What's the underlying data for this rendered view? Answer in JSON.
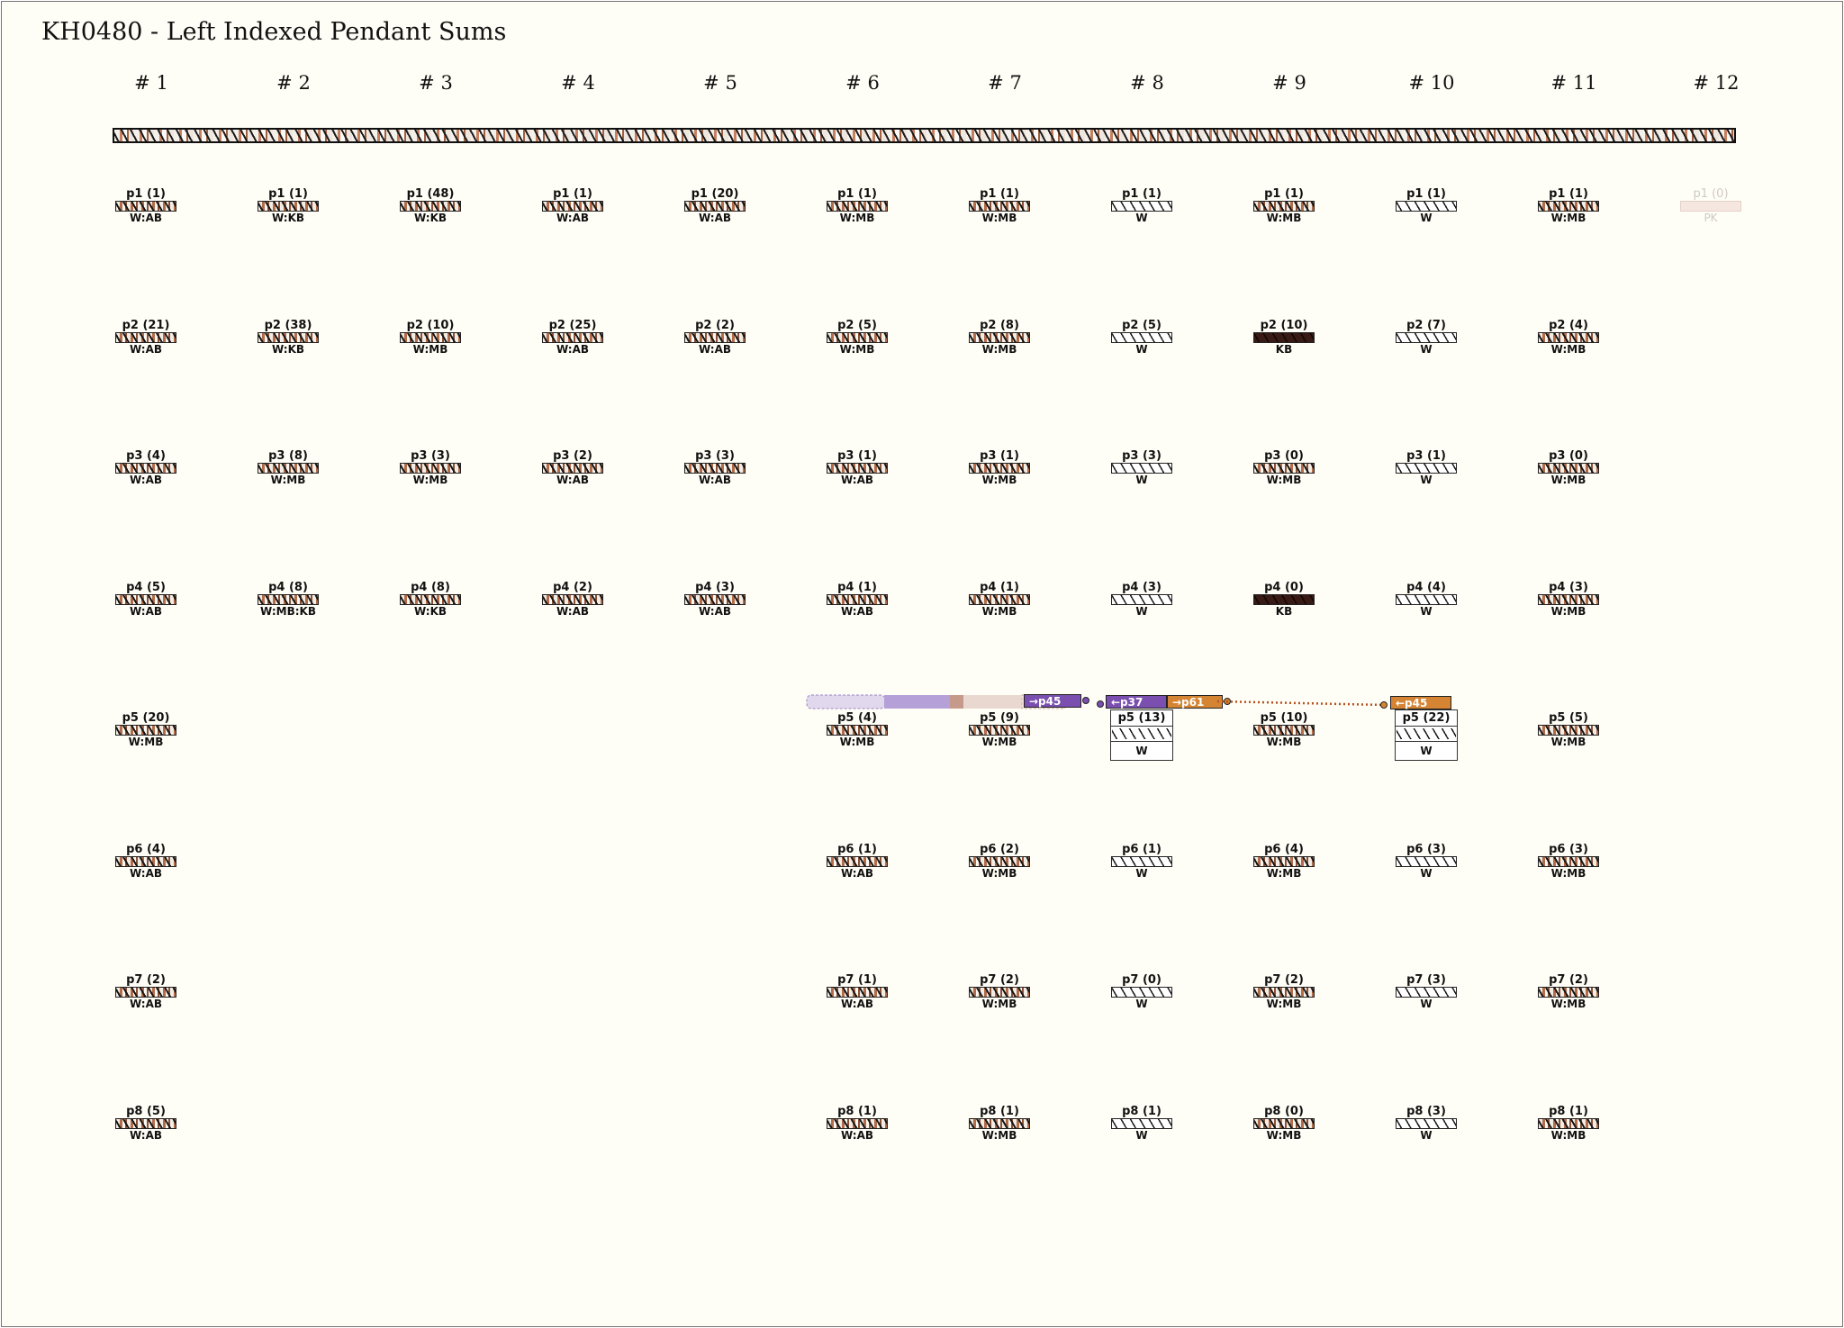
{
  "title": "KH0480 - Left Indexed Pendant Sums",
  "cord_group_headers": [
    "# 1",
    "# 2",
    "# 3",
    "# 4",
    "# 5",
    "# 6",
    "# 7",
    "# 8",
    "# 9",
    "# 10",
    "# 11",
    "# 12"
  ],
  "columns": [
    {
      "pendants": [
        {
          "label": "p1 (1)",
          "color": "W:AB",
          "cord": "mixed"
        },
        {
          "label": "p2 (21)",
          "color": "W:AB",
          "cord": "mixed"
        },
        {
          "label": "p3 (4)",
          "color": "W:AB",
          "cord": "mixed"
        },
        {
          "label": "p4 (5)",
          "color": "W:AB",
          "cord": "mixed"
        },
        {
          "label": "p5 (20)",
          "color": "W:MB",
          "cord": "mixed"
        },
        {
          "label": "p6 (4)",
          "color": "W:AB",
          "cord": "mixed"
        },
        {
          "label": "p7 (2)",
          "color": "W:AB",
          "cord": "mixed"
        },
        {
          "label": "p8 (5)",
          "color": "W:AB",
          "cord": "mixed"
        }
      ]
    },
    {
      "pendants": [
        {
          "label": "p1 (1)",
          "color": "W:KB",
          "cord": "mixed"
        },
        {
          "label": "p2 (38)",
          "color": "W:KB",
          "cord": "mixed"
        },
        {
          "label": "p3 (8)",
          "color": "W:MB",
          "cord": "mixed"
        },
        {
          "label": "p4 (8)",
          "color": "W:MB:KB",
          "cord": "mixed"
        }
      ]
    },
    {
      "pendants": [
        {
          "label": "p1 (48)",
          "color": "W:KB",
          "cord": "mixed"
        },
        {
          "label": "p2 (10)",
          "color": "W:MB",
          "cord": "mixed"
        },
        {
          "label": "p3 (3)",
          "color": "W:MB",
          "cord": "mixed"
        },
        {
          "label": "p4 (8)",
          "color": "W:KB",
          "cord": "mixed"
        }
      ]
    },
    {
      "pendants": [
        {
          "label": "p1 (1)",
          "color": "W:AB",
          "cord": "mixed"
        },
        {
          "label": "p2 (25)",
          "color": "W:AB",
          "cord": "mixed"
        },
        {
          "label": "p3 (2)",
          "color": "W:AB",
          "cord": "mixed"
        },
        {
          "label": "p4 (2)",
          "color": "W:AB",
          "cord": "mixed"
        }
      ]
    },
    {
      "pendants": [
        {
          "label": "p1 (20)",
          "color": "W:AB",
          "cord": "mixed"
        },
        {
          "label": "p2 (2)",
          "color": "W:AB",
          "cord": "mixed"
        },
        {
          "label": "p3 (3)",
          "color": "W:AB",
          "cord": "mixed"
        },
        {
          "label": "p4 (3)",
          "color": "W:AB",
          "cord": "mixed"
        }
      ]
    },
    {
      "pendants": [
        {
          "label": "p1 (1)",
          "color": "W:MB",
          "cord": "mixed"
        },
        {
          "label": "p2 (5)",
          "color": "W:MB",
          "cord": "mixed"
        },
        {
          "label": "p3 (1)",
          "color": "W:AB",
          "cord": "mixed"
        },
        {
          "label": "p4 (1)",
          "color": "W:AB",
          "cord": "mixed"
        },
        {
          "label": "p5 (4)",
          "color": "W:MB",
          "cord": "mixed"
        },
        {
          "label": "p6 (1)",
          "color": "W:AB",
          "cord": "mixed"
        },
        {
          "label": "p7 (1)",
          "color": "W:AB",
          "cord": "mixed"
        },
        {
          "label": "p8 (1)",
          "color": "W:AB",
          "cord": "mixed"
        }
      ]
    },
    {
      "pendants": [
        {
          "label": "p1 (1)",
          "color": "W:MB",
          "cord": "mixed"
        },
        {
          "label": "p2 (8)",
          "color": "W:MB",
          "cord": "mixed"
        },
        {
          "label": "p3 (1)",
          "color": "W:MB",
          "cord": "mixed"
        },
        {
          "label": "p4 (1)",
          "color": "W:MB",
          "cord": "mixed"
        },
        {
          "label": "p5 (9)",
          "color": "W:MB",
          "cord": "mixed"
        },
        {
          "label": "p6 (2)",
          "color": "W:MB",
          "cord": "mixed"
        },
        {
          "label": "p7 (2)",
          "color": "W:MB",
          "cord": "mixed"
        },
        {
          "label": "p8 (1)",
          "color": "W:MB",
          "cord": "mixed"
        }
      ]
    },
    {
      "pendants": [
        {
          "label": "p1 (1)",
          "color": "W",
          "cord": "W"
        },
        {
          "label": "p2 (5)",
          "color": "W",
          "cord": "W"
        },
        {
          "label": "p3 (3)",
          "color": "W",
          "cord": "W"
        },
        {
          "label": "p4 (3)",
          "color": "W",
          "cord": "W"
        },
        {
          "label": "p5 (13)",
          "color": "W",
          "cord": "W",
          "boxed": true
        },
        {
          "label": "p6 (1)",
          "color": "W",
          "cord": "W"
        },
        {
          "label": "p7 (0)",
          "color": "W",
          "cord": "W"
        },
        {
          "label": "p8 (1)",
          "color": "W",
          "cord": "W"
        }
      ]
    },
    {
      "pendants": [
        {
          "label": "p1 (1)",
          "color": "W:MB",
          "cord": "mixed"
        },
        {
          "label": "p2 (10)",
          "color": "KB",
          "cord": "KB"
        },
        {
          "label": "p3 (0)",
          "color": "W:MB",
          "cord": "mixed"
        },
        {
          "label": "p4 (0)",
          "color": "KB",
          "cord": "KB"
        },
        {
          "label": "p5 (10)",
          "color": "W:MB",
          "cord": "mixed"
        },
        {
          "label": "p6 (4)",
          "color": "W:MB",
          "cord": "mixed"
        },
        {
          "label": "p7 (2)",
          "color": "W:MB",
          "cord": "mixed"
        },
        {
          "label": "p8 (0)",
          "color": "W:MB",
          "cord": "mixed"
        }
      ]
    },
    {
      "pendants": [
        {
          "label": "p1 (1)",
          "color": "W",
          "cord": "W"
        },
        {
          "label": "p2 (7)",
          "color": "W",
          "cord": "W"
        },
        {
          "label": "p3 (1)",
          "color": "W",
          "cord": "W"
        },
        {
          "label": "p4 (4)",
          "color": "W",
          "cord": "W"
        },
        {
          "label": "p5 (22)",
          "color": "W",
          "cord": "W",
          "boxed": true
        },
        {
          "label": "p6 (3)",
          "color": "W",
          "cord": "W"
        },
        {
          "label": "p7 (3)",
          "color": "W",
          "cord": "W"
        },
        {
          "label": "p8 (3)",
          "color": "W",
          "cord": "W"
        }
      ]
    },
    {
      "pendants": [
        {
          "label": "p1 (1)",
          "color": "W:MB",
          "cord": "mixed"
        },
        {
          "label": "p2 (4)",
          "color": "W:MB",
          "cord": "mixed"
        },
        {
          "label": "p3 (0)",
          "color": "W:MB",
          "cord": "mixed"
        },
        {
          "label": "p4 (3)",
          "color": "W:MB",
          "cord": "mixed"
        },
        {
          "label": "p5 (5)",
          "color": "W:MB",
          "cord": "mixed"
        },
        {
          "label": "p6 (3)",
          "color": "W:MB",
          "cord": "mixed"
        },
        {
          "label": "p7 (2)",
          "color": "W:MB",
          "cord": "mixed"
        },
        {
          "label": "p8 (1)",
          "color": "W:MB",
          "cord": "mixed"
        }
      ]
    },
    {
      "pendants": [
        {
          "label": "p1 (0)",
          "color": "PK",
          "cord": "faded"
        }
      ]
    }
  ],
  "sum_links": {
    "source_tag": "→p45",
    "target_tag_a": "←p37",
    "source_tag_b": "→p61",
    "target_tag_b": "←p45",
    "purple": "#7a4fb0",
    "orange": "#d48432"
  }
}
